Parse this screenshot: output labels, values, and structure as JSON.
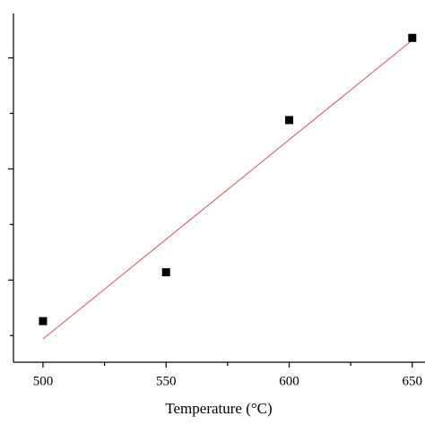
{
  "chart_data": {
    "type": "scatter",
    "xlabel": "Temperature (°C)",
    "x": [
      500,
      550,
      600,
      650
    ],
    "series": [
      {
        "color": "#000000",
        "values": [
          0.63,
          1.07,
          2.44,
          3.18
        ]
      }
    ],
    "fit": {
      "color": "#e05050",
      "x": [
        500,
        650
      ],
      "values": [
        0.47,
        3.16
      ]
    },
    "xlim": [
      488,
      657
    ],
    "xticks": [
      500,
      550,
      600,
      650
    ],
    "xminor": [
      525,
      575,
      625
    ],
    "ylim": [
      0.26,
      3.4
    ],
    "yticks": [
      1,
      2,
      3
    ],
    "yminor": [
      0.5,
      1.5,
      2.5
    ]
  }
}
